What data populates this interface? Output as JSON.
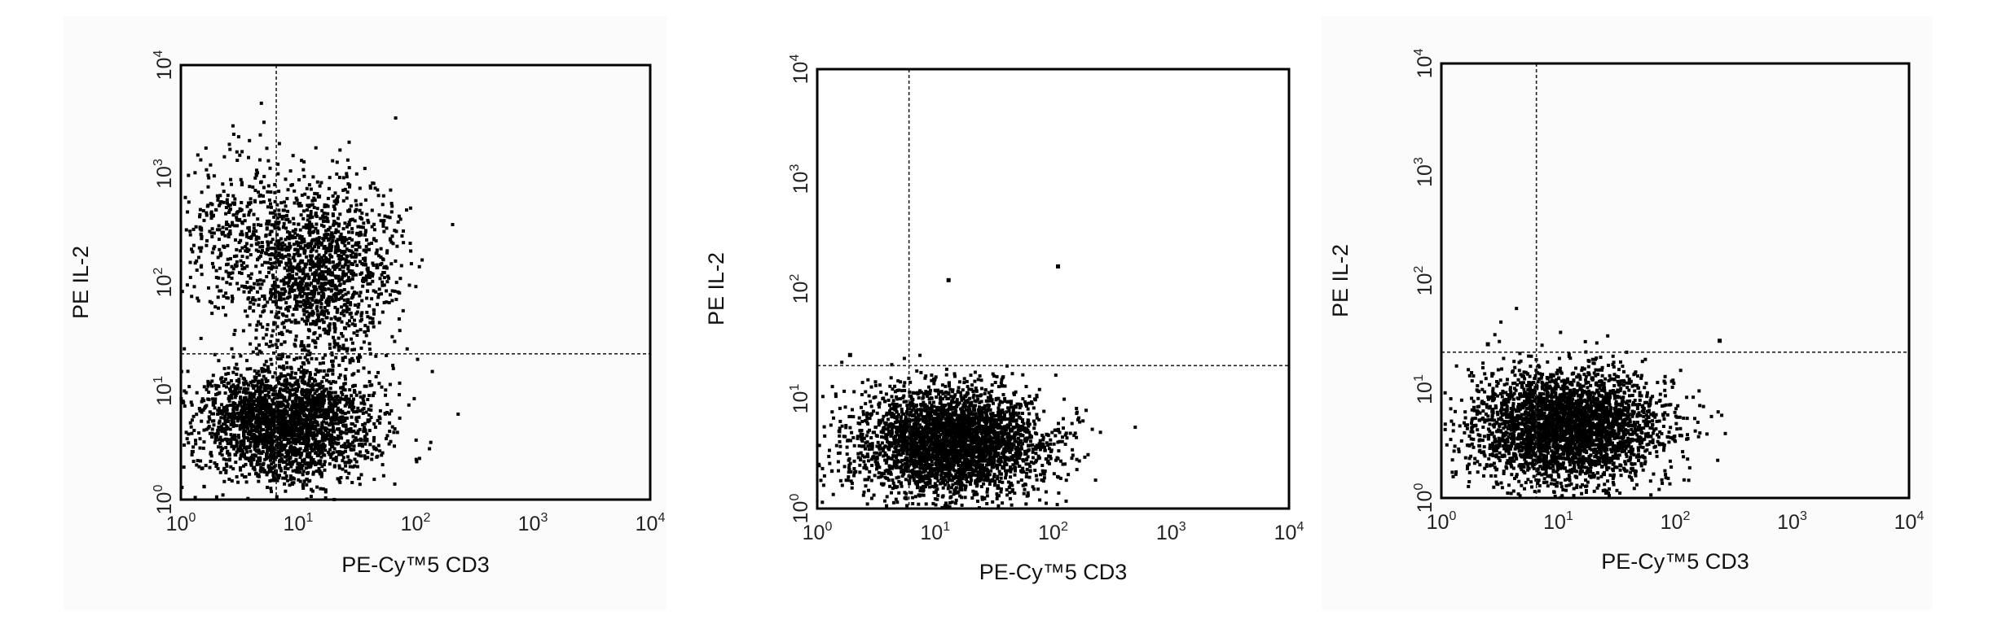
{
  "chart_data": [
    {
      "type": "scatter",
      "title": "",
      "xlabel": "PE-Cy™5 CD3",
      "ylabel": "PE IL-2",
      "xscale": "log",
      "yscale": "log",
      "xlim": [
        1,
        10000
      ],
      "ylim": [
        1,
        10000
      ],
      "x_ticks": [
        {
          "base": "10",
          "exp": "0"
        },
        {
          "base": "10",
          "exp": "1"
        },
        {
          "base": "10",
          "exp": "2"
        },
        {
          "base": "10",
          "exp": "3"
        },
        {
          "base": "10",
          "exp": "4"
        }
      ],
      "y_ticks": [
        {
          "base": "10",
          "exp": "0"
        },
        {
          "base": "10",
          "exp": "1"
        },
        {
          "base": "10",
          "exp": "2"
        },
        {
          "base": "10",
          "exp": "3"
        },
        {
          "base": "10",
          "exp": "4"
        }
      ],
      "gate": {
        "x": 6.5,
        "y": 22
      },
      "clusters": [
        {
          "x_center": 8,
          "y_center": 5,
          "x_spread_decades": 0.38,
          "y_spread_decades": 0.26,
          "n": 2600
        },
        {
          "x_center": 15,
          "y_center": 130,
          "x_spread_decades": 0.32,
          "y_spread_decades": 0.42,
          "n": 1500
        },
        {
          "x_center": 3,
          "y_center": 300,
          "x_spread_decades": 0.25,
          "y_spread_decades": 0.35,
          "n": 350
        }
      ],
      "grid": false,
      "legend": "none",
      "color": "#000000"
    },
    {
      "type": "scatter",
      "title": "",
      "xlabel": "PE-Cy™5 CD3",
      "ylabel": "PE IL-2",
      "xscale": "log",
      "yscale": "log",
      "xlim": [
        1,
        10000
      ],
      "ylim": [
        1,
        10000
      ],
      "x_ticks": [
        {
          "base": "10",
          "exp": "0"
        },
        {
          "base": "10",
          "exp": "1"
        },
        {
          "base": "10",
          "exp": "2"
        },
        {
          "base": "10",
          "exp": "3"
        },
        {
          "base": "10",
          "exp": "4"
        }
      ],
      "y_ticks": [
        {
          "base": "10",
          "exp": "0"
        },
        {
          "base": "10",
          "exp": "1"
        },
        {
          "base": "10",
          "exp": "2"
        },
        {
          "base": "10",
          "exp": "3"
        },
        {
          "base": "10",
          "exp": "4"
        }
      ],
      "gate": {
        "x": 6,
        "y": 20
      },
      "clusters": [
        {
          "x_center": 14,
          "y_center": 4,
          "x_spread_decades": 0.4,
          "y_spread_decades": 0.24,
          "n": 3400
        }
      ],
      "outliers": [
        {
          "x": 1.9,
          "y": 25
        },
        {
          "x": 13,
          "y": 120
        },
        {
          "x": 110,
          "y": 160
        }
      ],
      "grid": false,
      "legend": "none",
      "color": "#000000"
    },
    {
      "type": "scatter",
      "title": "",
      "xlabel": "PE-Cy™5 CD3",
      "ylabel": "PE IL-2",
      "xscale": "log",
      "yscale": "log",
      "xlim": [
        1,
        10000
      ],
      "ylim": [
        1,
        10000
      ],
      "x_ticks": [
        {
          "base": "10",
          "exp": "0"
        },
        {
          "base": "10",
          "exp": "1"
        },
        {
          "base": "10",
          "exp": "2"
        },
        {
          "base": "10",
          "exp": "3"
        },
        {
          "base": "10",
          "exp": "4"
        }
      ],
      "y_ticks": [
        {
          "base": "10",
          "exp": "0"
        },
        {
          "base": "10",
          "exp": "1"
        },
        {
          "base": "10",
          "exp": "2"
        },
        {
          "base": "10",
          "exp": "3"
        },
        {
          "base": "10",
          "exp": "4"
        }
      ],
      "gate": {
        "x": 6.5,
        "y": 22
      },
      "clusters": [
        {
          "x_center": 12,
          "y_center": 4.5,
          "x_spread_decades": 0.4,
          "y_spread_decades": 0.26,
          "n": 3400
        }
      ],
      "outliers": [
        {
          "x": 240,
          "y": 28
        },
        {
          "x": 2.5,
          "y": 26
        }
      ],
      "grid": false,
      "legend": "none",
      "color": "#000000"
    }
  ]
}
